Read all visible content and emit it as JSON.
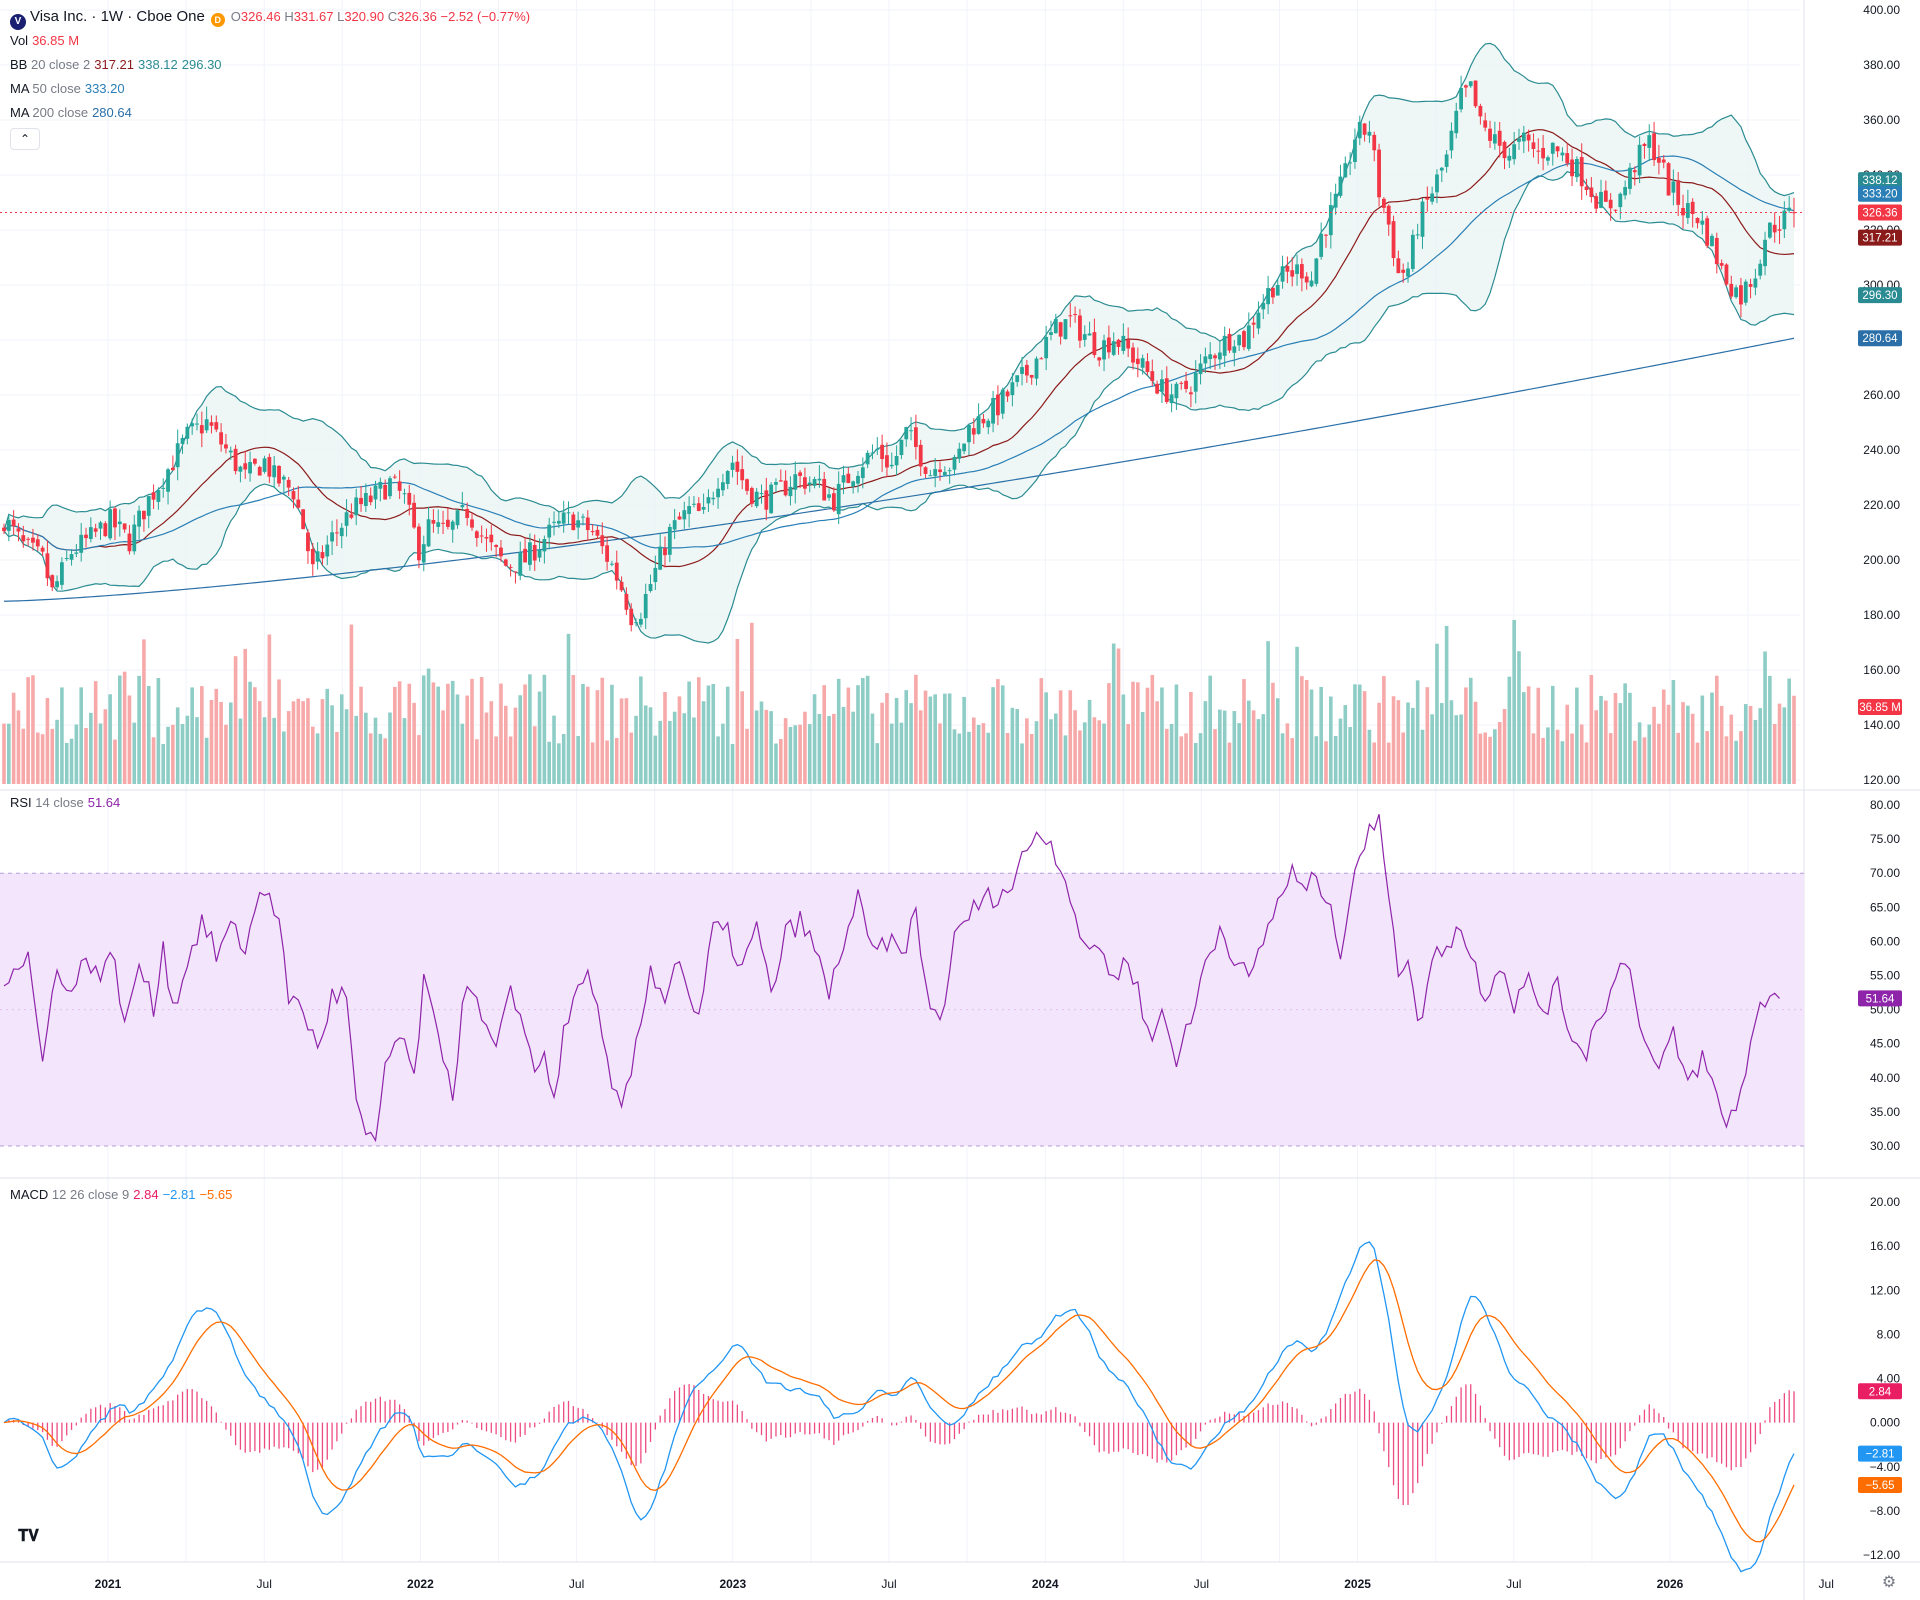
{
  "header": {
    "symbol_title": "Visa Inc. · 1W · Cboe One",
    "logo_letter": "V",
    "badge": "D",
    "ohlc": {
      "o_label": "O",
      "o": "326.46",
      "h_label": "H",
      "h": "331.67",
      "l_label": "L",
      "l": "320.90",
      "c_label": "C",
      "c": "326.36",
      "change": "−2.52 (−0.77%)"
    },
    "vol_label": "Vol",
    "vol_value": "36.85 M",
    "bb_label": "BB",
    "bb_params": "20 close 2",
    "bb_basis": "317.21",
    "bb_upper": "338.12",
    "bb_lower": "296.30",
    "ma50_label": "MA",
    "ma50_params": "50 close",
    "ma50_value": "333.20",
    "ma200_label": "MA",
    "ma200_params": "200 close",
    "ma200_value": "280.64",
    "rsi_label": "RSI",
    "rsi_params": "14 close",
    "rsi_value": "51.64",
    "macd_label": "MACD",
    "macd_params": "12 26 close 9",
    "macd_hist": "2.84",
    "macd_line": "−2.81",
    "macd_signal": "−5.65"
  },
  "controls": {
    "collapse_icon": "chevron-up-icon",
    "collapse_glyph": "⌃",
    "logo_glyph": "𝐓𝐕",
    "settings_glyph": "⚙"
  },
  "colors": {
    "up": "#26a69a",
    "down": "#f23645",
    "bb_line": "#2a8c92",
    "bb_fill": "#e7f4f1",
    "bb_basis": "#8b1a1a",
    "ma50": "#2a7fb6",
    "ma200": "#2a6fa8",
    "rsi": "#8e24aa",
    "rsi_band": "#f3e5fc",
    "macd": "#2196f3",
    "signal": "#ff6d00",
    "hist": "#e91e63",
    "vol_up": "#8ecdc6",
    "vol_down": "#f7a9a9"
  },
  "chart_data": {
    "type": "candlestick",
    "x_axis": {
      "tick_labels": [
        "2021",
        "Jul",
        "2022",
        "Jul",
        "2023",
        "Jul",
        "2024",
        "Jul",
        "2025",
        "Jul",
        "2026",
        "Jul"
      ]
    },
    "price_axis": {
      "min": 120,
      "max": 400,
      "tick_labels": [
        "400.00",
        "380.00",
        "360.00",
        "340.00",
        "320.00",
        "300.00",
        "280.00",
        "260.00",
        "240.00",
        "220.00",
        "200.00",
        "180.00",
        "160.00",
        "140.00",
        "120.00"
      ]
    },
    "price_badges": [
      "338.12",
      "333.20",
      "326.36",
      "317.21",
      "296.30",
      "280.64",
      "36.85 M"
    ],
    "price_anchors": [
      [
        0,
        215
      ],
      [
        4,
        205
      ],
      [
        8,
        200
      ],
      [
        10,
        188
      ],
      [
        14,
        203
      ],
      [
        18,
        208
      ],
      [
        22,
        214
      ],
      [
        26,
        207
      ],
      [
        30,
        222
      ],
      [
        34,
        233
      ],
      [
        38,
        245
      ],
      [
        42,
        250
      ],
      [
        46,
        240
      ],
      [
        50,
        230
      ],
      [
        54,
        236
      ],
      [
        56,
        230
      ],
      [
        60,
        225
      ],
      [
        62,
        212
      ],
      [
        64,
        196
      ],
      [
        68,
        208
      ],
      [
        72,
        218
      ],
      [
        76,
        222
      ],
      [
        80,
        228
      ],
      [
        83,
        222
      ],
      [
        86,
        204
      ],
      [
        88,
        212
      ],
      [
        92,
        210
      ],
      [
        96,
        218
      ],
      [
        100,
        206
      ],
      [
        104,
        198
      ],
      [
        108,
        200
      ],
      [
        112,
        208
      ],
      [
        116,
        214
      ],
      [
        118,
        215
      ],
      [
        122,
        210
      ],
      [
        126,
        198
      ],
      [
        128,
        190
      ],
      [
        130,
        180
      ],
      [
        132,
        182
      ],
      [
        135,
        196
      ],
      [
        138,
        210
      ],
      [
        142,
        218
      ],
      [
        145,
        216
      ],
      [
        148,
        230
      ],
      [
        151,
        236
      ],
      [
        154,
        226
      ],
      [
        157,
        222
      ],
      [
        160,
        224
      ],
      [
        164,
        230
      ],
      [
        168,
        228
      ],
      [
        172,
        222
      ],
      [
        175,
        230
      ],
      [
        178,
        236
      ],
      [
        181,
        240
      ],
      [
        184,
        234
      ],
      [
        187,
        246
      ],
      [
        190,
        238
      ],
      [
        192,
        232
      ],
      [
        194,
        236
      ],
      [
        197,
        234
      ],
      [
        200,
        248
      ],
      [
        203,
        252
      ],
      [
        206,
        256
      ],
      [
        209,
        262
      ],
      [
        212,
        268
      ],
      [
        215,
        276
      ],
      [
        218,
        284
      ],
      [
        221,
        287
      ],
      [
        224,
        282
      ],
      [
        227,
        277
      ],
      [
        230,
        281
      ],
      [
        233,
        276
      ],
      [
        236,
        270
      ],
      [
        238,
        266
      ],
      [
        240,
        262
      ],
      [
        243,
        260
      ],
      [
        246,
        264
      ],
      [
        249,
        272
      ],
      [
        252,
        278
      ],
      [
        255,
        282
      ],
      [
        257,
        280
      ],
      [
        260,
        292
      ],
      [
        263,
        300
      ],
      [
        266,
        304
      ],
      [
        269,
        306
      ],
      [
        271,
        302
      ],
      [
        273,
        318
      ],
      [
        276,
        330
      ],
      [
        278,
        340
      ],
      [
        280,
        354
      ],
      [
        283,
        357
      ],
      [
        285,
        334
      ],
      [
        287,
        322
      ],
      [
        289,
        304
      ],
      [
        291,
        306
      ],
      [
        293,
        322
      ],
      [
        296,
        334
      ],
      [
        299,
        346
      ],
      [
        302,
        368
      ],
      [
        304,
        371
      ],
      [
        306,
        358
      ],
      [
        309,
        352
      ],
      [
        312,
        348
      ],
      [
        315,
        352
      ],
      [
        318,
        348
      ],
      [
        321,
        350
      ],
      [
        324,
        346
      ],
      [
        327,
        340
      ],
      [
        330,
        332
      ],
      [
        332,
        328
      ],
      [
        335,
        332
      ],
      [
        338,
        344
      ],
      [
        341,
        352
      ],
      [
        343,
        346
      ],
      [
        345,
        336
      ],
      [
        348,
        328
      ],
      [
        351,
        325
      ],
      [
        354,
        315
      ],
      [
        356,
        305
      ],
      [
        358,
        300
      ],
      [
        360,
        296
      ],
      [
        363,
        305
      ],
      [
        365,
        318
      ],
      [
        367,
        322
      ],
      [
        369,
        324
      ],
      [
        371,
        326.36
      ]
    ],
    "rsi_axis": {
      "min": 30,
      "max": 80,
      "tick_labels": [
        "80.00",
        "75.00",
        "70.00",
        "65.00",
        "60.00",
        "55.00",
        "50.00",
        "45.00",
        "40.00",
        "35.00",
        "30.00"
      ],
      "band": [
        30,
        70
      ]
    },
    "rsi_anchors": [
      [
        0,
        55
      ],
      [
        5,
        58
      ],
      [
        8,
        42
      ],
      [
        11,
        57
      ],
      [
        14,
        52
      ],
      [
        17,
        58
      ],
      [
        20,
        55
      ],
      [
        23,
        58
      ],
      [
        25,
        47
      ],
      [
        28,
        57
      ],
      [
        31,
        50
      ],
      [
        33,
        60
      ],
      [
        35,
        50
      ],
      [
        38,
        57
      ],
      [
        41,
        63
      ],
      [
        44,
        58
      ],
      [
        47,
        62
      ],
      [
        50,
        59
      ],
      [
        53,
        67
      ],
      [
        55,
        68
      ],
      [
        57,
        62
      ],
      [
        59,
        52
      ],
      [
        62,
        50
      ],
      [
        65,
        44
      ],
      [
        68,
        52
      ],
      [
        71,
        52
      ],
      [
        73,
        36
      ],
      [
        75,
        31
      ],
      [
        77,
        30
      ],
      [
        79,
        42
      ],
      [
        82,
        46
      ],
      [
        85,
        40
      ],
      [
        87,
        54
      ],
      [
        89,
        48
      ],
      [
        91,
        44
      ],
      [
        93,
        38
      ],
      [
        96,
        55
      ],
      [
        99,
        48
      ],
      [
        102,
        44
      ],
      [
        105,
        52
      ],
      [
        108,
        48
      ],
      [
        110,
        40
      ],
      [
        112,
        44
      ],
      [
        114,
        37
      ],
      [
        116,
        46
      ],
      [
        118,
        51
      ],
      [
        120,
        55
      ],
      [
        122,
        54
      ],
      [
        124,
        45
      ],
      [
        126,
        38
      ],
      [
        128,
        35
      ],
      [
        131,
        44
      ],
      [
        134,
        56
      ],
      [
        137,
        52
      ],
      [
        140,
        58
      ],
      [
        142,
        52
      ],
      [
        144,
        48
      ],
      [
        147,
        62
      ],
      [
        150,
        61
      ],
      [
        153,
        56
      ],
      [
        156,
        62
      ],
      [
        159,
        52
      ],
      [
        162,
        61
      ],
      [
        165,
        63
      ],
      [
        168,
        59
      ],
      [
        171,
        52
      ],
      [
        174,
        60
      ],
      [
        177,
        66
      ],
      [
        180,
        58
      ],
      [
        183,
        60
      ],
      [
        186,
        58
      ],
      [
        189,
        64
      ],
      [
        191,
        53
      ],
      [
        194,
        48
      ],
      [
        197,
        60
      ],
      [
        200,
        64
      ],
      [
        203,
        66
      ],
      [
        206,
        67
      ],
      [
        209,
        68
      ],
      [
        212,
        74
      ],
      [
        215,
        76.5
      ],
      [
        218,
        73
      ],
      [
        221,
        67
      ],
      [
        224,
        58
      ],
      [
        227,
        60
      ],
      [
        230,
        54
      ],
      [
        233,
        58
      ],
      [
        236,
        50
      ],
      [
        238,
        45
      ],
      [
        240,
        50
      ],
      [
        243,
        43
      ],
      [
        246,
        48
      ],
      [
        249,
        57
      ],
      [
        252,
        62
      ],
      [
        255,
        58
      ],
      [
        258,
        54
      ],
      [
        261,
        60
      ],
      [
        264,
        66
      ],
      [
        267,
        70
      ],
      [
        270,
        67
      ],
      [
        272,
        70
      ],
      [
        274,
        66
      ],
      [
        277,
        59
      ],
      [
        280,
        71
      ],
      [
        283,
        76
      ],
      [
        285,
        77
      ],
      [
        287,
        68
      ],
      [
        289,
        56
      ],
      [
        291,
        58
      ],
      [
        293,
        47
      ],
      [
        296,
        57
      ],
      [
        299,
        60
      ],
      [
        302,
        62
      ],
      [
        304,
        58
      ],
      [
        307,
        52
      ],
      [
        310,
        57
      ],
      [
        313,
        51
      ],
      [
        316,
        54
      ],
      [
        319,
        50
      ],
      [
        322,
        53
      ],
      [
        325,
        46
      ],
      [
        328,
        44
      ],
      [
        331,
        50
      ],
      [
        334,
        54
      ],
      [
        336,
        58
      ],
      [
        338,
        53
      ],
      [
        340,
        45
      ],
      [
        343,
        41
      ],
      [
        346,
        46
      ],
      [
        349,
        39
      ],
      [
        352,
        43
      ],
      [
        355,
        37
      ],
      [
        357,
        33
      ],
      [
        360,
        38
      ],
      [
        362,
        45
      ],
      [
        364,
        50
      ],
      [
        366,
        53
      ],
      [
        368,
        51.64
      ]
    ],
    "macd_axis": {
      "min": -12,
      "max": 20,
      "tick_labels": [
        "20.00",
        "16.00",
        "12.00",
        "8.00",
        "4.00",
        "0.000",
        "−4.00",
        "−8.00",
        "−12.00"
      ]
    },
    "macd_badges": [
      "2.84",
      "−2.81",
      "−5.65"
    ]
  }
}
